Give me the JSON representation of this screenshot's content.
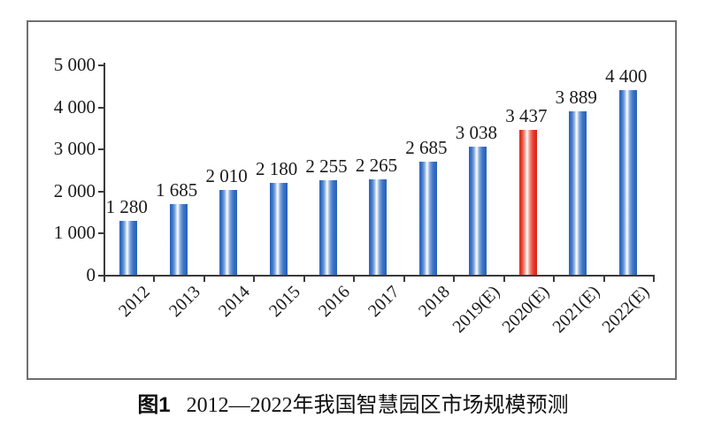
{
  "chart_data": {
    "type": "bar",
    "categories": [
      "2012",
      "2013",
      "2014",
      "2015",
      "2016",
      "2017",
      "2018",
      "2019(E)",
      "2020(E)",
      "2021(E)",
      "2022(E)"
    ],
    "values": [
      1280,
      1685,
      2010,
      2180,
      2255,
      2265,
      2685,
      3038,
      3437,
      3889,
      4400
    ],
    "value_labels": [
      "1 280",
      "1 685",
      "2 010",
      "2 180",
      "2 255",
      "2 265",
      "2 685",
      "3 038",
      "3 437",
      "3 889",
      "4 400"
    ],
    "y_tick_labels": [
      "5 000",
      "4 000",
      "3 000",
      "2 000",
      "1 000",
      "0"
    ],
    "y_tick_values": [
      5000,
      4000,
      3000,
      2000,
      1000,
      0
    ],
    "ylim": [
      0,
      5000
    ],
    "highlight_index": 8,
    "grid": false,
    "legend": false,
    "colors": {
      "bar_default": "#2e6ac0",
      "bar_highlight": "#e8231c",
      "axis": "#3a3a3a",
      "box_border": "#6f6f6f",
      "text": "#1a1a1a"
    }
  },
  "caption": {
    "prefix": "图1",
    "text": "2012—2022年我国智慧园区市场规模预测"
  }
}
